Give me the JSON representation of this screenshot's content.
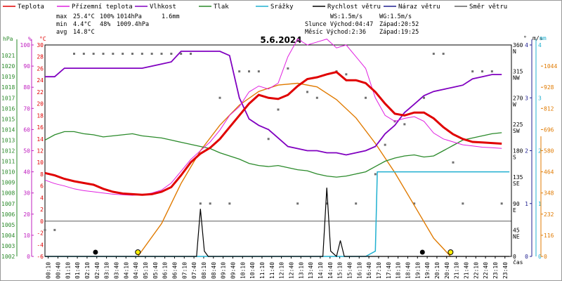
{
  "chart_data": {
    "type": "line",
    "title": "5.6.2024",
    "x_unit": "čas",
    "x_ticks": [
      "00:10",
      "00:40",
      "01:10",
      "01:40",
      "02:10",
      "02:40",
      "03:10",
      "03:40",
      "04:10",
      "04:40",
      "05:10",
      "05:40",
      "06:10",
      "06:40",
      "07:10",
      "07:40",
      "08:10",
      "08:40",
      "09:10",
      "09:40",
      "10:10",
      "10:40",
      "11:10",
      "11:40",
      "12:10",
      "12:40",
      "13:10",
      "13:40",
      "14:10",
      "14:40",
      "15:10",
      "15:40",
      "16:10",
      "16:40",
      "17:10",
      "17:40",
      "18:10",
      "18:40",
      "19:10",
      "19:40",
      "20:10",
      "20:40",
      "21:10",
      "21:40",
      "22:10",
      "22:40",
      "23:10",
      "23:40"
    ],
    "legend": [
      {
        "name": "Teplota",
        "color": "#e00000"
      },
      {
        "name": "Přízemní teplota",
        "color": "#e020e0"
      },
      {
        "name": "Vlhkost",
        "color": "#8000c0"
      },
      {
        "name": "Tlak",
        "color": "#2a8a2a"
      },
      {
        "name": "Srážky",
        "color": "#20b0d0"
      },
      {
        "name": "Rychlost větru",
        "color": "#000000"
      },
      {
        "name": "Náraz větru",
        "color": "#202090"
      },
      {
        "name": "Směr větru",
        "color": "#606060"
      }
    ],
    "stats": {
      "max": {
        "label": "max",
        "temp": "25.4°C",
        "hum": "100%",
        "press": "1014hPa",
        "rain": "1.6mm"
      },
      "min": {
        "label": "min",
        "temp": "4.4°C",
        "hum": "48%",
        "press": "1009.4hPa"
      },
      "avg": {
        "label": "avg",
        "temp": "14.8°C"
      }
    },
    "info": {
      "ws": "WS:1.5m/s",
      "wg": "WG:1.5m/s",
      "sun": "Slunce Východ:04:47",
      "sun_set": "Západ:20:52",
      "moon": "Měsíc  Východ:2:36",
      "moon_set": "Západ:19:25"
    },
    "axes": {
      "hpa": {
        "label": "hPa",
        "ticks": [
          "1021",
          "1020",
          "1019",
          "1018",
          "1017",
          "1016",
          "1015",
          "1014",
          "1013",
          "1012",
          "1011",
          "1010",
          "1009",
          "1008",
          "1007",
          "1006",
          "1005",
          "1004",
          "1003",
          "1002"
        ]
      },
      "pct": {
        "label": "%",
        "ticks": [
          "100",
          "90",
          "80",
          "70",
          "60",
          "50",
          "40",
          "30",
          "20",
          "10",
          "0"
        ]
      },
      "temp": {
        "label": "°C",
        "ticks": [
          "30",
          "28",
          "26",
          "24",
          "22",
          "20",
          "18",
          "16",
          "14",
          "12",
          "10",
          "8",
          "6",
          "4",
          "2",
          "0",
          "-2",
          "-4",
          "-6"
        ]
      },
      "deg": {
        "label": "°",
        "ticks": [
          {
            "v": "360",
            "d": "N"
          },
          {
            "v": "315",
            "d": "NW"
          },
          {
            "v": "270",
            "d": "W"
          },
          {
            "v": "225",
            "d": "SW"
          },
          {
            "v": "180",
            "d": "S"
          },
          {
            "v": "135",
            "d": "SE"
          },
          {
            "v": "90",
            "d": "E"
          },
          {
            "v": "45",
            "d": "NE"
          },
          {
            "v": "0",
            "d": ""
          }
        ]
      },
      "ms": {
        "label": "m/s",
        "ticks": [
          "4",
          "3",
          "2",
          "1",
          "0"
        ]
      },
      "mm": {
        "label": "mm",
        "ticks": [
          "4",
          "3",
          "2",
          "1",
          "0"
        ]
      },
      "rad": {
        "ticks": [
          "1044",
          "928",
          "812",
          "696",
          "580",
          "464",
          "348",
          "232",
          "116",
          "0"
        ]
      }
    },
    "series": {
      "temperature": [
        [
          0,
          8.2
        ],
        [
          0.5,
          7.8
        ],
        [
          1,
          7.2
        ],
        [
          1.5,
          6.8
        ],
        [
          2,
          6.5
        ],
        [
          2.5,
          6.2
        ],
        [
          3,
          5.5
        ],
        [
          3.5,
          5.0
        ],
        [
          4,
          4.7
        ],
        [
          4.5,
          4.6
        ],
        [
          5,
          4.5
        ],
        [
          5.5,
          4.6
        ],
        [
          6,
          5.0
        ],
        [
          6.5,
          5.8
        ],
        [
          7,
          7.8
        ],
        [
          7.5,
          10.0
        ],
        [
          8,
          11.5
        ],
        [
          8.5,
          12.5
        ],
        [
          9,
          14.0
        ],
        [
          9.5,
          16.0
        ],
        [
          10,
          18.0
        ],
        [
          10.5,
          20.0
        ],
        [
          11,
          21.5
        ],
        [
          11.5,
          21.0
        ],
        [
          12,
          20.8
        ],
        [
          12.5,
          21.5
        ],
        [
          13,
          23.0
        ],
        [
          13.5,
          24.2
        ],
        [
          14,
          24.5
        ],
        [
          14.5,
          25.0
        ],
        [
          15,
          25.4
        ],
        [
          15.5,
          24.0
        ],
        [
          16,
          24.0
        ],
        [
          16.5,
          23.5
        ],
        [
          17,
          22.0
        ],
        [
          17.5,
          20.0
        ],
        [
          18,
          18.3
        ],
        [
          18.5,
          18.0
        ],
        [
          19,
          18.5
        ],
        [
          19.5,
          18.5
        ],
        [
          20,
          17.5
        ],
        [
          20.5,
          16.0
        ],
        [
          21,
          14.8
        ],
        [
          21.5,
          14.0
        ],
        [
          22,
          13.5
        ],
        [
          22.5,
          13.4
        ],
        [
          23,
          13.3
        ],
        [
          23.5,
          13.2
        ]
      ],
      "ground_temperature": [
        [
          0,
          7.0
        ],
        [
          0.5,
          6.4
        ],
        [
          1,
          6.0
        ],
        [
          1.5,
          5.5
        ],
        [
          2,
          5.2
        ],
        [
          2.5,
          5.0
        ],
        [
          3,
          4.8
        ],
        [
          3.5,
          4.6
        ],
        [
          4,
          4.5
        ],
        [
          4.5,
          4.4
        ],
        [
          5,
          4.5
        ],
        [
          5.5,
          4.8
        ],
        [
          6,
          5.3
        ],
        [
          6.5,
          6.5
        ],
        [
          7,
          8.5
        ],
        [
          7.5,
          10.5
        ],
        [
          8,
          12.0
        ],
        [
          8.5,
          13.5
        ],
        [
          9,
          15.5
        ],
        [
          9.5,
          18.0
        ],
        [
          10,
          19.5
        ],
        [
          10.5,
          22.0
        ],
        [
          11,
          23.0
        ],
        [
          11.5,
          22.5
        ],
        [
          12,
          23.5
        ],
        [
          12.5,
          28.0
        ],
        [
          13,
          31.0
        ],
        [
          13.5,
          30.0
        ],
        [
          14,
          30.5
        ],
        [
          14.5,
          31.0
        ],
        [
          15,
          29.5
        ],
        [
          15.5,
          30.0
        ],
        [
          16,
          28.0
        ],
        [
          16.5,
          26.0
        ],
        [
          17,
          21.0
        ],
        [
          17.5,
          18.0
        ],
        [
          18,
          17.0
        ],
        [
          18.5,
          17.5
        ],
        [
          19,
          17.8
        ],
        [
          19.5,
          17.0
        ],
        [
          20,
          15.0
        ],
        [
          20.5,
          14.0
        ],
        [
          21,
          13.5
        ],
        [
          21.5,
          13.0
        ],
        [
          22,
          12.8
        ],
        [
          22.5,
          12.6
        ],
        [
          23,
          12.5
        ],
        [
          23.5,
          12.4
        ]
      ],
      "humidity": [
        [
          0,
          85
        ],
        [
          0.5,
          85
        ],
        [
          1,
          89
        ],
        [
          1.5,
          89
        ],
        [
          2,
          89
        ],
        [
          2.5,
          89
        ],
        [
          3,
          89
        ],
        [
          3.5,
          89
        ],
        [
          4,
          89
        ],
        [
          4.5,
          89
        ],
        [
          5,
          89
        ],
        [
          5.5,
          90
        ],
        [
          6,
          91
        ],
        [
          6.5,
          92
        ],
        [
          7,
          97
        ],
        [
          7.5,
          97
        ],
        [
          8,
          97
        ],
        [
          8.5,
          97
        ],
        [
          9,
          97
        ],
        [
          9.5,
          95
        ],
        [
          10,
          75
        ],
        [
          10.5,
          65
        ],
        [
          11,
          62
        ],
        [
          11.5,
          60
        ],
        [
          12,
          56
        ],
        [
          12.5,
          52
        ],
        [
          13,
          51
        ],
        [
          13.5,
          50
        ],
        [
          14,
          50
        ],
        [
          14.5,
          49
        ],
        [
          15,
          49
        ],
        [
          15.5,
          48
        ],
        [
          16,
          49
        ],
        [
          16.5,
          50
        ],
        [
          17,
          52
        ],
        [
          17.5,
          58
        ],
        [
          18,
          62
        ],
        [
          18.5,
          68
        ],
        [
          19,
          72
        ],
        [
          19.5,
          76
        ],
        [
          20,
          78
        ],
        [
          20.5,
          79
        ],
        [
          21,
          80
        ],
        [
          21.5,
          81
        ],
        [
          22,
          84
        ],
        [
          22.5,
          85
        ],
        [
          23,
          86
        ],
        [
          23.5,
          86
        ]
      ],
      "pressure": [
        [
          0,
          1013.0
        ],
        [
          0.5,
          1013.5
        ],
        [
          1,
          1013.8
        ],
        [
          1.5,
          1013.8
        ],
        [
          2,
          1013.6
        ],
        [
          2.5,
          1013.5
        ],
        [
          3,
          1013.3
        ],
        [
          3.5,
          1013.4
        ],
        [
          4,
          1013.5
        ],
        [
          4.5,
          1013.6
        ],
        [
          5,
          1013.4
        ],
        [
          5.5,
          1013.3
        ],
        [
          6,
          1013.2
        ],
        [
          6.5,
          1013.0
        ],
        [
          7,
          1012.8
        ],
        [
          7.5,
          1012.6
        ],
        [
          8,
          1012.4
        ],
        [
          8.5,
          1012.2
        ],
        [
          9,
          1011.8
        ],
        [
          9.5,
          1011.5
        ],
        [
          10,
          1011.2
        ],
        [
          10.5,
          1010.8
        ],
        [
          11,
          1010.6
        ],
        [
          11.5,
          1010.5
        ],
        [
          12,
          1010.6
        ],
        [
          12.5,
          1010.4
        ],
        [
          13,
          1010.2
        ],
        [
          13.5,
          1010.1
        ],
        [
          14,
          1009.8
        ],
        [
          14.5,
          1009.6
        ],
        [
          15,
          1009.5
        ],
        [
          15.5,
          1009.6
        ],
        [
          16,
          1009.8
        ],
        [
          16.5,
          1010.0
        ],
        [
          17,
          1010.5
        ],
        [
          17.5,
          1011.0
        ],
        [
          18,
          1011.3
        ],
        [
          18.5,
          1011.5
        ],
        [
          19,
          1011.6
        ],
        [
          19.5,
          1011.4
        ],
        [
          20,
          1011.5
        ],
        [
          20.5,
          1012.0
        ],
        [
          21,
          1012.5
        ],
        [
          21.5,
          1013.0
        ],
        [
          22,
          1013.2
        ],
        [
          22.5,
          1013.4
        ],
        [
          23,
          1013.6
        ],
        [
          23.5,
          1013.7
        ]
      ],
      "rain": [
        [
          0,
          0
        ],
        [
          16.5,
          0
        ],
        [
          17,
          0.1
        ],
        [
          17.1,
          1.6
        ],
        [
          23.9,
          1.6
        ]
      ],
      "wind_speed": [
        [
          0,
          0
        ],
        [
          7.8,
          0
        ],
        [
          8.0,
          0.9
        ],
        [
          8.2,
          0.1
        ],
        [
          8.4,
          0
        ],
        [
          14.3,
          0
        ],
        [
          14.5,
          1.3
        ],
        [
          14.7,
          0.1
        ],
        [
          15.0,
          0
        ],
        [
          15.2,
          0.3
        ],
        [
          15.4,
          0
        ],
        [
          23.9,
          0
        ]
      ],
      "solar": [
        [
          4.78,
          0
        ],
        [
          6,
          180
        ],
        [
          7,
          400
        ],
        [
          8,
          580
        ],
        [
          9,
          720
        ],
        [
          10,
          830
        ],
        [
          11,
          905
        ],
        [
          12,
          940
        ],
        [
          13,
          950
        ],
        [
          14,
          930
        ],
        [
          15,
          860
        ],
        [
          16,
          760
        ],
        [
          17,
          620
        ],
        [
          18,
          460
        ],
        [
          19,
          280
        ],
        [
          20,
          100
        ],
        [
          20.87,
          0
        ]
      ],
      "wind_dir": [
        [
          0,
          45
        ],
        [
          0.5,
          45
        ],
        [
          1.5,
          345
        ],
        [
          2,
          345
        ],
        [
          2.5,
          345
        ],
        [
          3,
          345
        ],
        [
          3.5,
          345
        ],
        [
          4,
          345
        ],
        [
          4.5,
          345
        ],
        [
          5,
          345
        ],
        [
          5.5,
          345
        ],
        [
          6,
          345
        ],
        [
          6.5,
          345
        ],
        [
          7,
          345
        ],
        [
          7.5,
          345
        ],
        [
          8,
          90
        ],
        [
          8.5,
          90
        ],
        [
          9,
          270
        ],
        [
          9.5,
          90
        ],
        [
          10,
          315
        ],
        [
          10.5,
          315
        ],
        [
          11,
          315
        ],
        [
          11.5,
          200
        ],
        [
          12,
          250
        ],
        [
          12.5,
          320
        ],
        [
          13,
          90
        ],
        [
          13.5,
          280
        ],
        [
          14,
          270
        ],
        [
          14.5,
          90
        ],
        [
          15,
          315
        ],
        [
          15.5,
          310
        ],
        [
          16,
          90
        ],
        [
          16.5,
          270
        ],
        [
          17,
          140
        ],
        [
          17.5,
          190
        ],
        [
          18,
          230
        ],
        [
          18.5,
          225
        ],
        [
          19,
          90
        ],
        [
          19.5,
          270
        ],
        [
          20,
          345
        ],
        [
          20.5,
          345
        ],
        [
          21,
          160
        ],
        [
          21.5,
          90
        ],
        [
          22,
          315
        ],
        [
          22.5,
          315
        ],
        [
          23,
          315
        ],
        [
          23.5,
          90
        ]
      ]
    }
  }
}
